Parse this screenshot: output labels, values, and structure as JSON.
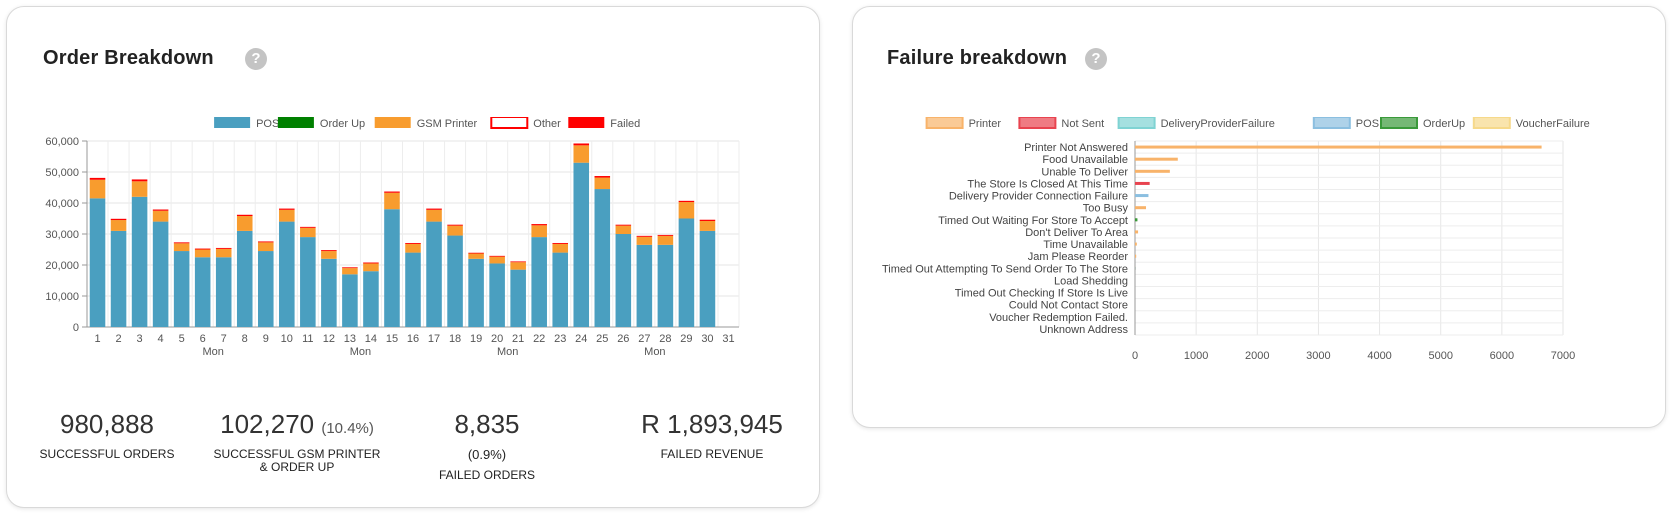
{
  "order_breakdown": {
    "title": "Order Breakdown",
    "help_icon": "?",
    "stats": [
      {
        "value": "980,888",
        "pct": "",
        "pct_line": "",
        "label": "SUCCESSFUL ORDERS"
      },
      {
        "value": "102,270",
        "pct": "(10.4%)",
        "pct_line": "",
        "label": "SUCCESSFUL GSM PRINTER & ORDER UP"
      },
      {
        "value": "8,835",
        "pct": "",
        "pct_line": "(0.9%)",
        "label": "FAILED ORDERS"
      },
      {
        "value": "R 1,893,945",
        "pct": "",
        "pct_line": "",
        "label": "FAILED REVENUE"
      }
    ]
  },
  "failure_breakdown": {
    "title": "Failure breakdown",
    "help_icon": "?"
  },
  "chart_data": [
    {
      "type": "bar",
      "stacked": true,
      "categories": [
        "1",
        "2",
        "3",
        "4",
        "5",
        "6",
        "7",
        "8",
        "9",
        "10",
        "11",
        "12",
        "13",
        "14",
        "15",
        "16",
        "17",
        "18",
        "19",
        "20",
        "21",
        "22",
        "23",
        "24",
        "25",
        "26",
        "27",
        "28",
        "29",
        "30",
        "31"
      ],
      "week_labels": [
        {
          "after_category": "6",
          "label": "Mon"
        },
        {
          "after_category": "13",
          "label": "Mon"
        },
        {
          "after_category": "20",
          "label": "Mon"
        },
        {
          "after_category": "27",
          "label": "Mon"
        }
      ],
      "series": [
        {
          "name": "POS",
          "color": "#4a9fc0",
          "values": [
            41500,
            31000,
            42000,
            34000,
            24500,
            22500,
            22500,
            31000,
            24500,
            34000,
            29000,
            22000,
            17000,
            18000,
            38000,
            24000,
            34000,
            29500,
            22000,
            20500,
            18500,
            29000,
            24000,
            53000,
            44500,
            30000,
            26500,
            26500,
            35000,
            31000,
            0
          ]
        },
        {
          "name": "Order Up",
          "color": "#008000",
          "values": [
            0,
            0,
            0,
            0,
            0,
            0,
            0,
            0,
            0,
            0,
            0,
            0,
            0,
            0,
            0,
            0,
            0,
            0,
            0,
            0,
            0,
            0,
            0,
            0,
            0,
            0,
            0,
            0,
            0,
            0,
            0
          ]
        },
        {
          "name": "GSM Printer",
          "color": "#f89c2e",
          "values": [
            6000,
            3500,
            5000,
            3500,
            2500,
            2500,
            2700,
            4800,
            2800,
            3800,
            3000,
            2500,
            2000,
            2500,
            5300,
            2800,
            3800,
            3200,
            1700,
            2200,
            2400,
            3800,
            2800,
            5600,
            3700,
            2700,
            2600,
            2900,
            5300,
            3200,
            0
          ]
        },
        {
          "name": "Other",
          "color": "#ffffff",
          "border": "#ff0000",
          "values": [
            0,
            0,
            0,
            0,
            0,
            0,
            0,
            0,
            0,
            0,
            0,
            0,
            0,
            0,
            0,
            0,
            0,
            0,
            0,
            0,
            0,
            0,
            0,
            0,
            0,
            0,
            0,
            0,
            0,
            0,
            0
          ]
        },
        {
          "name": "Failed",
          "color": "#ff0000",
          "values": [
            600,
            400,
            600,
            400,
            300,
            300,
            300,
            400,
            300,
            400,
            300,
            300,
            250,
            300,
            400,
            300,
            400,
            300,
            250,
            250,
            250,
            400,
            300,
            600,
            500,
            300,
            300,
            300,
            400,
            400,
            0
          ]
        }
      ],
      "ylim": [
        0,
        60000
      ],
      "yticks": [
        "0",
        "10,000",
        "20,000",
        "30,000",
        "40,000",
        "50,000",
        "60,000"
      ],
      "legend": "top"
    },
    {
      "type": "bar",
      "orientation": "horizontal",
      "categories": [
        "Printer Not Answered",
        "Food Unavailable",
        "Unable To Deliver",
        "The Store Is Closed At This Time",
        "Delivery Provider Connection Failure",
        "Too Busy",
        "Timed Out Waiting For Store To Accept",
        "Don't Deliver To Area",
        "Time Unavailable",
        "Jam Please Reorder",
        "Timed Out Attempting To Send Order To The Store",
        "Load Shedding",
        "Timed Out Checking If Store Is Live",
        "Could Not Contact Store",
        "Voucher Redemption Failed.",
        "Unknown Address"
      ],
      "series": [
        {
          "name": "Printer",
          "color": "#f8b36a",
          "values": [
            6650,
            700,
            570,
            0,
            0,
            180,
            30,
            50,
            30,
            20,
            15,
            0,
            0,
            0,
            0,
            0
          ]
        },
        {
          "name": "Not Sent",
          "color": "#e8434f",
          "values": [
            0,
            0,
            0,
            240,
            0,
            0,
            0,
            0,
            0,
            0,
            0,
            0,
            0,
            0,
            0,
            0
          ]
        },
        {
          "name": "DeliveryProviderFailure",
          "color": "#7fd3d3",
          "values": [
            0,
            0,
            0,
            0,
            0,
            0,
            0,
            0,
            0,
            0,
            0,
            0,
            0,
            0,
            0,
            0
          ]
        },
        {
          "name": "POS",
          "color": "#8bbfe0",
          "values": [
            0,
            0,
            0,
            0,
            220,
            0,
            20,
            0,
            0,
            0,
            10,
            0,
            0,
            0,
            0,
            0
          ]
        },
        {
          "name": "OrderUp",
          "color": "#3a9a3a",
          "values": [
            0,
            0,
            0,
            0,
            0,
            0,
            40,
            0,
            0,
            0,
            0,
            0,
            0,
            0,
            0,
            0
          ]
        },
        {
          "name": "VoucherFailure",
          "color": "#f6d98a",
          "values": [
            0,
            0,
            0,
            0,
            0,
            0,
            0,
            0,
            0,
            0,
            0,
            0,
            0,
            0,
            0,
            0
          ]
        }
      ],
      "xlim": [
        0,
        7000
      ],
      "xticks": [
        "0",
        "1000",
        "2000",
        "3000",
        "4000",
        "5000",
        "6000",
        "7000"
      ],
      "legend": "top"
    }
  ]
}
